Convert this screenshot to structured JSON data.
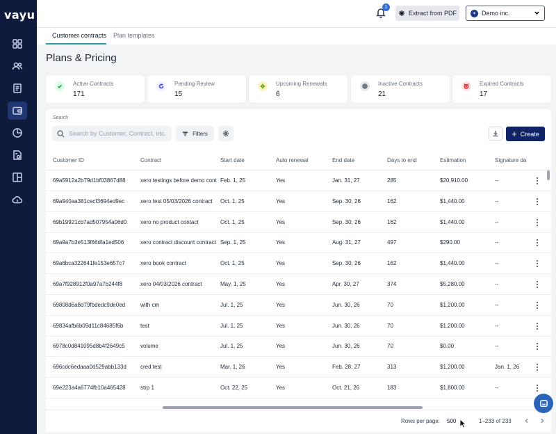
{
  "brand": {
    "logo_text": "vayu"
  },
  "sidebar": {
    "items": [
      {
        "name": "dashboard",
        "icon": "grid-icon",
        "active": false
      },
      {
        "name": "customers",
        "icon": "users-icon",
        "active": false
      },
      {
        "name": "documents",
        "icon": "document-icon",
        "active": false
      },
      {
        "name": "plans",
        "icon": "wallet-icon",
        "active": true
      },
      {
        "name": "analytics",
        "icon": "pie-chart-icon",
        "active": false
      },
      {
        "name": "invoices",
        "icon": "invoice-icon",
        "active": false
      },
      {
        "name": "layout",
        "icon": "layout-icon",
        "active": false
      },
      {
        "name": "integrations",
        "icon": "cloud-icon",
        "active": false
      }
    ]
  },
  "topbar": {
    "notifications_count": "1",
    "extract_label": "Extract from PDF",
    "org_name": "Demo inc."
  },
  "tabs": [
    {
      "label": "Customer contracts",
      "active": true
    },
    {
      "label": "Plan templates",
      "active": false
    }
  ],
  "page": {
    "title": "Plans & Pricing"
  },
  "stats": [
    {
      "label": "Active Contracts",
      "value": "171",
      "icon": "check-circle-icon",
      "color": "#16a34a",
      "bg": "#dcfce7"
    },
    {
      "label": "Pending Review",
      "value": "15",
      "icon": "refresh-icon",
      "color": "#4f46e5",
      "bg": "#eef2ff"
    },
    {
      "label": "Upcoming Renewals",
      "value": "6",
      "icon": "sun-icon",
      "color": "#65a30d",
      "bg": "#fef3c7"
    },
    {
      "label": "Inactive Contracts",
      "value": "21",
      "icon": "stop-circle-icon",
      "color": "#6b7280",
      "bg": "#e5e7eb"
    },
    {
      "label": "Expired Contracts",
      "value": "17",
      "icon": "alarm-icon",
      "color": "#dc2626",
      "bg": "#fee2e2"
    }
  ],
  "search": {
    "label": "Search",
    "placeholder": "Search by Customer, Contract, etc.",
    "value": ""
  },
  "toolbar": {
    "filters_label": "Filters",
    "create_label": "Create"
  },
  "table": {
    "columns": [
      "Customer ID",
      "Contract",
      "Start date",
      "Auto renewal",
      "End date",
      "Days to end",
      "Estimation",
      "Signature da"
    ],
    "rows": [
      [
        "69a5912a2b79d1bf03867d88",
        "xero testings before demo contract",
        "Feb. 1, 25",
        "Yes",
        "Jan. 31, 27",
        "285",
        "$20,910.00",
        "--"
      ],
      [
        "69a940aa381cecf3694ed9ec",
        "xero test 05/03/2026 contract",
        "Oct. 1, 25",
        "Yes",
        "Sep. 30, 26",
        "162",
        "$1,440.00",
        "--"
      ],
      [
        "69b19921cb7ad507954a06d0",
        "xero no product contact",
        "Oct. 1, 25",
        "Yes",
        "Sep. 30, 26",
        "162",
        "$1,440.00",
        "--"
      ],
      [
        "69a9a7b3e513f66dfa1ed506",
        "xero contract discount contract",
        "Sep. 1, 25",
        "Yes",
        "Aug. 31, 27",
        "497",
        "$290.00",
        "--"
      ],
      [
        "69a6bca322641fe153e657c7",
        "xero book contract",
        "Oct. 1, 25",
        "Yes",
        "Sep. 30, 26",
        "162",
        "$1,440.00",
        "--"
      ],
      [
        "69a7f928912f0a97a7b244f8",
        "xero 04/03/2026 contract",
        "May. 1, 25",
        "Yes",
        "Apr. 30, 27",
        "374",
        "$5,280.00",
        "--"
      ],
      [
        "69808d6a8d79fbdedc9de0ed",
        "with cm",
        "Jul. 1, 25",
        "Yes",
        "Jun. 30, 26",
        "70",
        "$1,200.00",
        "--"
      ],
      [
        "69834afb6b09d11c84685f6b",
        "test",
        "Jul. 1, 25",
        "Yes",
        "Jun. 30, 26",
        "70",
        "$1,200.00",
        "--"
      ],
      [
        "6978c0d841095d8b4f2649c5",
        "volume",
        "Jul. 1, 25",
        "Yes",
        "Jun. 30, 26",
        "70",
        "$0.00",
        "--"
      ],
      [
        "696cdc6edaaa0d529abb133d",
        "cred test",
        "Mar. 1, 26",
        "Yes",
        "Feb. 28, 27",
        "313",
        "$1,200.00",
        "Jan. 1, 26"
      ],
      [
        "69e223a4a6774fb10a465428",
        "strp 1",
        "Oct. 22, 25",
        "Yes",
        "Oct. 21, 26",
        "183",
        "$1,800.00",
        "--"
      ]
    ]
  },
  "pagination": {
    "rows_per_page_label": "Rows per page:",
    "rows_per_page": "500",
    "range_text": "1–233 of 233"
  }
}
